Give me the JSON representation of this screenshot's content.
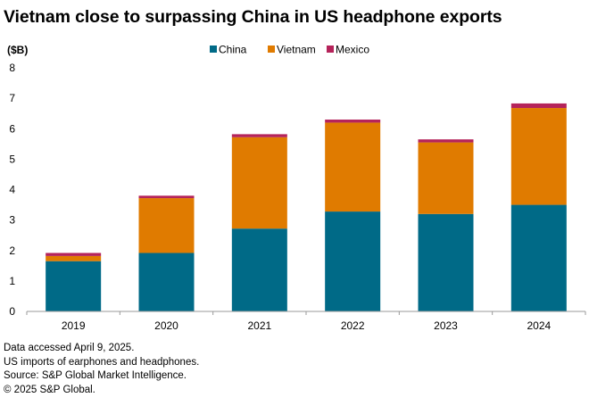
{
  "chart_data": {
    "type": "bar",
    "stacked": true,
    "title": "Vietnam close to surpassing China in US headphone exports",
    "ylabel": "($B)",
    "xlabel": "",
    "ylim": [
      0,
      8
    ],
    "yticks": [
      0,
      1,
      2,
      3,
      4,
      5,
      6,
      7,
      8
    ],
    "grid": false,
    "legend": "top-center",
    "categories": [
      "2019",
      "2020",
      "2021",
      "2022",
      "2023",
      "2024"
    ],
    "series": [
      {
        "name": "China",
        "color": "#006a87",
        "values": [
          1.65,
          1.92,
          2.72,
          3.28,
          3.2,
          3.5
        ]
      },
      {
        "name": "Vietnam",
        "color": "#e07b00",
        "values": [
          0.17,
          1.8,
          3.0,
          2.92,
          2.35,
          3.18
        ]
      },
      {
        "name": "Mexico",
        "color": "#b5235a",
        "values": [
          0.1,
          0.08,
          0.1,
          0.1,
          0.1,
          0.15
        ]
      }
    ]
  },
  "notes": [
    "Data accessed April 9, 2025.",
    "US imports of earphones and headphones.",
    "Source: S&P Global Market Intelligence.",
    "© 2025 S&P Global."
  ]
}
